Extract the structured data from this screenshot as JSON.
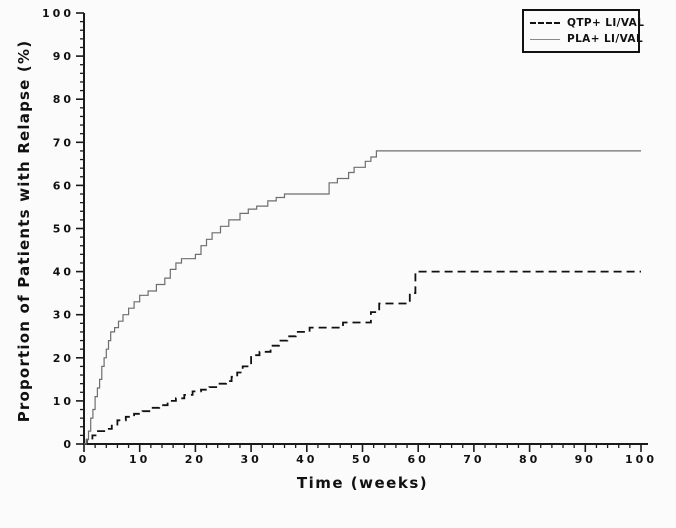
{
  "figure": {
    "background_color": "#fbfbfb",
    "axis_color": "#1a1a1a"
  },
  "chart_data": {
    "type": "line",
    "subtype": "kaplan-meier-step",
    "title": "",
    "xlabel": "Time (weeks)",
    "ylabel": "Proportion of Patients with Relapse (%)",
    "xlim": [
      0,
      100
    ],
    "ylim": [
      0,
      100
    ],
    "x_ticks": [
      0,
      10,
      20,
      30,
      40,
      50,
      60,
      70,
      80,
      90,
      100
    ],
    "y_ticks": [
      0,
      10,
      20,
      30,
      40,
      50,
      60,
      70,
      80,
      90,
      100
    ],
    "minor_tick_step": 2,
    "grid": false,
    "legend_position": "top-right",
    "series": [
      {
        "name": "QTP+ LI/VAL",
        "line_style": "dashed",
        "color": "#111111",
        "width": 1.8,
        "final_value": 40,
        "step_points": [
          [
            0,
            0
          ],
          [
            0.5,
            1
          ],
          [
            1.5,
            2
          ],
          [
            2.5,
            3
          ],
          [
            4,
            3.5
          ],
          [
            5,
            4.5
          ],
          [
            6,
            5.5
          ],
          [
            7.5,
            6.3
          ],
          [
            9,
            7
          ],
          [
            10.5,
            7.6
          ],
          [
            12,
            8.4
          ],
          [
            13.5,
            9
          ],
          [
            15,
            10
          ],
          [
            16.5,
            10.6
          ],
          [
            18,
            11.4
          ],
          [
            19.5,
            12.2
          ],
          [
            21,
            12.6
          ],
          [
            22.5,
            13.2
          ],
          [
            24,
            14
          ],
          [
            25.5,
            14.6
          ],
          [
            26.5,
            15.6
          ],
          [
            27.5,
            16.6
          ],
          [
            28.5,
            18
          ],
          [
            30,
            20.6
          ],
          [
            31.5,
            21.4
          ],
          [
            33.5,
            22.8
          ],
          [
            35,
            24
          ],
          [
            36.5,
            25
          ],
          [
            38,
            26
          ],
          [
            40.5,
            27
          ],
          [
            46.5,
            28.2
          ],
          [
            51.5,
            30.6
          ],
          [
            53,
            32.6
          ],
          [
            58.5,
            35
          ],
          [
            59.5,
            40
          ],
          [
            100,
            40
          ]
        ]
      },
      {
        "name": "PLA+ LI/VAL",
        "line_style": "solid",
        "color": "#6e6e6e",
        "width": 1.2,
        "final_value": 68,
        "step_points": [
          [
            0,
            0
          ],
          [
            0.4,
            1
          ],
          [
            0.8,
            3
          ],
          [
            1.2,
            6
          ],
          [
            1.6,
            8
          ],
          [
            2,
            11
          ],
          [
            2.4,
            13
          ],
          [
            2.8,
            15
          ],
          [
            3.2,
            18
          ],
          [
            3.6,
            20
          ],
          [
            4,
            22
          ],
          [
            4.4,
            24
          ],
          [
            4.8,
            26
          ],
          [
            5.5,
            27
          ],
          [
            6.2,
            28.5
          ],
          [
            7,
            30
          ],
          [
            8,
            31.5
          ],
          [
            9,
            33
          ],
          [
            10,
            34.5
          ],
          [
            11.5,
            35.5
          ],
          [
            13,
            37
          ],
          [
            14.5,
            38.5
          ],
          [
            15.5,
            40.5
          ],
          [
            16.5,
            42
          ],
          [
            17.5,
            43
          ],
          [
            20,
            44
          ],
          [
            21,
            46
          ],
          [
            22,
            47.5
          ],
          [
            23,
            49
          ],
          [
            24.5,
            50.5
          ],
          [
            26,
            52
          ],
          [
            28,
            53.5
          ],
          [
            29.5,
            54.5
          ],
          [
            31,
            55.2
          ],
          [
            33,
            56.4
          ],
          [
            34.5,
            57.2
          ],
          [
            36,
            58
          ],
          [
            44,
            60.6
          ],
          [
            45.5,
            61.6
          ],
          [
            47.5,
            63
          ],
          [
            48.5,
            64.2
          ],
          [
            50.5,
            65.6
          ],
          [
            51.5,
            66.6
          ],
          [
            52.5,
            68
          ],
          [
            100,
            68
          ]
        ]
      }
    ]
  }
}
